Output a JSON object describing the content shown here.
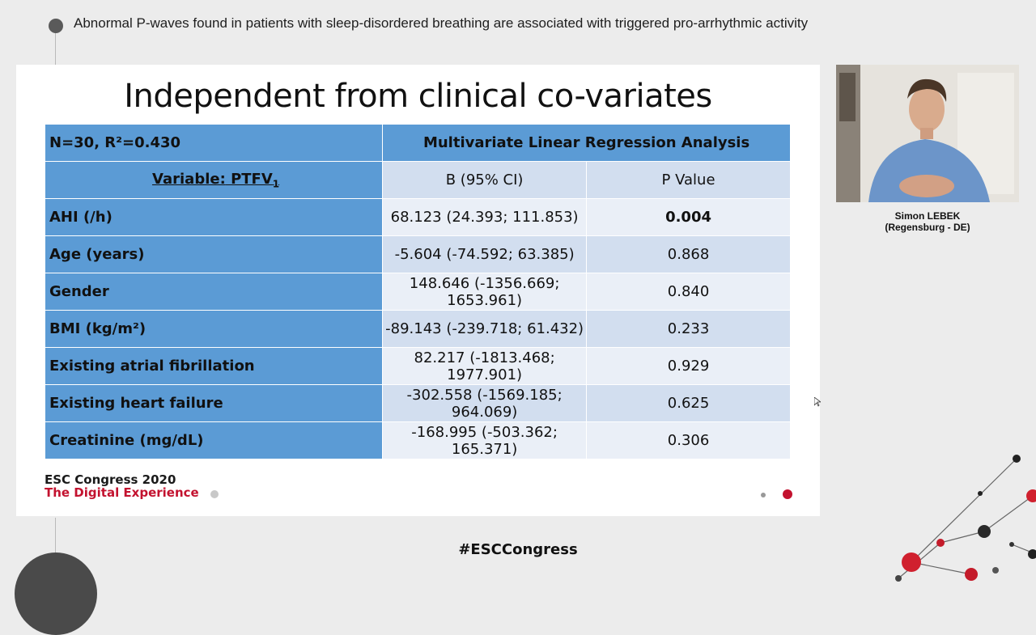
{
  "header": {
    "session_title": "Abnormal P-waves found in patients with sleep-disordered breathing are associated with triggered pro-arrhythmic activity"
  },
  "slide": {
    "title": "Independent from clinical co-variates",
    "table": {
      "top_left": "N=30, R²=0.430",
      "analysis_title": "Multivariate Linear Regression Analysis",
      "variable_label": "Variable:",
      "variable_name": "PTFV",
      "variable_subscript": "1",
      "col_b": "B (95% CI)",
      "col_p": "P Value",
      "rows": [
        {
          "variable": "AHI (/h)",
          "b": "68.123 (24.393; 111.853)",
          "p": "0.004"
        },
        {
          "variable": "Age (years)",
          "b": "-5.604 (-74.592; 63.385)",
          "p": "0.868"
        },
        {
          "variable": "Gender",
          "b": "148.646 (-1356.669; 1653.961)",
          "p": "0.840"
        },
        {
          "variable": "BMI (kg/m²)",
          "b": "-89.143 (-239.718; 61.432)",
          "p": "0.233"
        },
        {
          "variable": "Existing atrial fibrillation",
          "b": "82.217 (-1813.468; 1977.901)",
          "p": "0.929"
        },
        {
          "variable": "Existing heart failure",
          "b": "-302.558 (-1569.185; 964.069)",
          "p": "0.625"
        },
        {
          "variable": "Creatinine (mg/dL)",
          "b": "-168.995 (-503.362; 165.371)",
          "p": "0.306"
        }
      ]
    },
    "logo": {
      "line1": "ESC Congress 2020",
      "line2": "The Digital Experience"
    }
  },
  "speaker": {
    "name": "Simon LEBEK",
    "affiliation": "(Regensburg - DE)"
  },
  "footer": {
    "hashtag": "#ESCCongress"
  },
  "colors": {
    "table_blue": "#5b9bd5",
    "row_light": "#eaeff7",
    "row_mid": "#d2deef",
    "esc_red": "#c3122f"
  },
  "icons": [
    "bullet-dot-icon",
    "mouse-cursor-icon",
    "molecule-decoration-icon"
  ]
}
